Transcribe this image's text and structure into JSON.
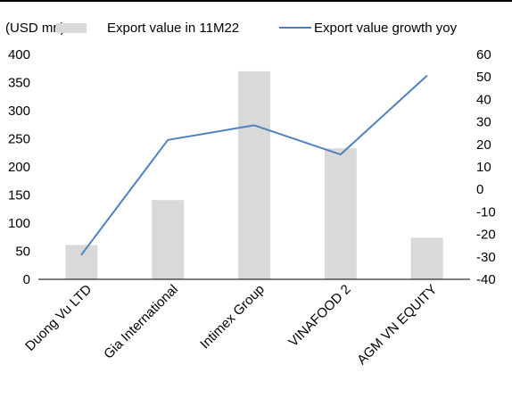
{
  "chart_data": {
    "type": "bar+line",
    "unit_label": "(USD mn)",
    "categories": [
      "Duong Vu LTD",
      "Gia International",
      "Intimex Group",
      "VINAFOOD 2",
      "AGM VN EQUITY"
    ],
    "series": [
      {
        "name": "Export value in 11M22",
        "type": "bar",
        "axis": "left",
        "color": "#d9d9d9",
        "values": [
          61,
          141,
          370,
          233,
          74
        ]
      },
      {
        "name": "Export value growth yoy",
        "type": "line",
        "axis": "right",
        "color": "#4f81bd",
        "values": [
          -29,
          22,
          28.5,
          15.5,
          50.5
        ]
      }
    ],
    "y_left": {
      "min": 0,
      "max": 400,
      "step": 50,
      "ticks": [
        "0",
        "50",
        "100",
        "150",
        "200",
        "250",
        "300",
        "350",
        "400"
      ]
    },
    "y_right": {
      "min": -40,
      "max": 60,
      "step": 10,
      "ticks": [
        "-40",
        "-30",
        "-20",
        "-10",
        "0",
        "10",
        "20",
        "30",
        "40",
        "50",
        "60"
      ]
    },
    "grid": false,
    "legend_position": "top"
  }
}
